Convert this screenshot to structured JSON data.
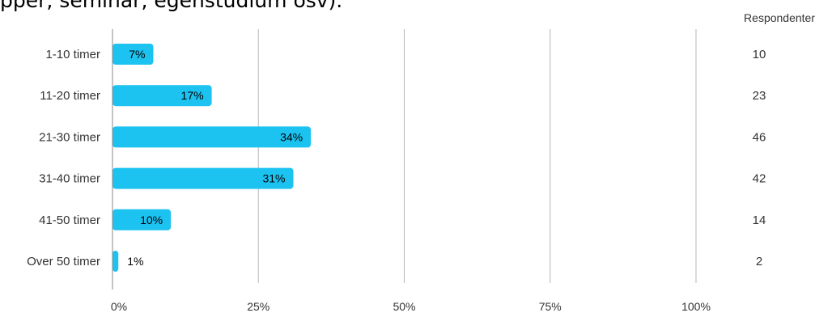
{
  "title": "pper, seminar, egenstudium osv).",
  "respondents_header": "Respondenter",
  "colors": {
    "bar": "#1cc3f1",
    "grid": "#b7b7b7",
    "axis": "#888888"
  },
  "chart_data": {
    "type": "bar",
    "orientation": "horizontal",
    "categories": [
      "1-10 timer",
      "11-20 timer",
      "21-30 timer",
      "31-40 timer",
      "41-50 timer",
      "Over 50 timer"
    ],
    "values": [
      7,
      17,
      34,
      31,
      10,
      1
    ],
    "value_labels": [
      "7%",
      "17%",
      "34%",
      "31%",
      "10%",
      "1%"
    ],
    "respondents": [
      "10",
      "23",
      "46",
      "42",
      "14",
      "2"
    ],
    "xlim": [
      0,
      100
    ],
    "x_ticks": [
      0,
      25,
      50,
      75,
      100
    ],
    "x_tick_labels": [
      "0%",
      "25%",
      "50%",
      "75%",
      "100%"
    ],
    "grid": true
  }
}
